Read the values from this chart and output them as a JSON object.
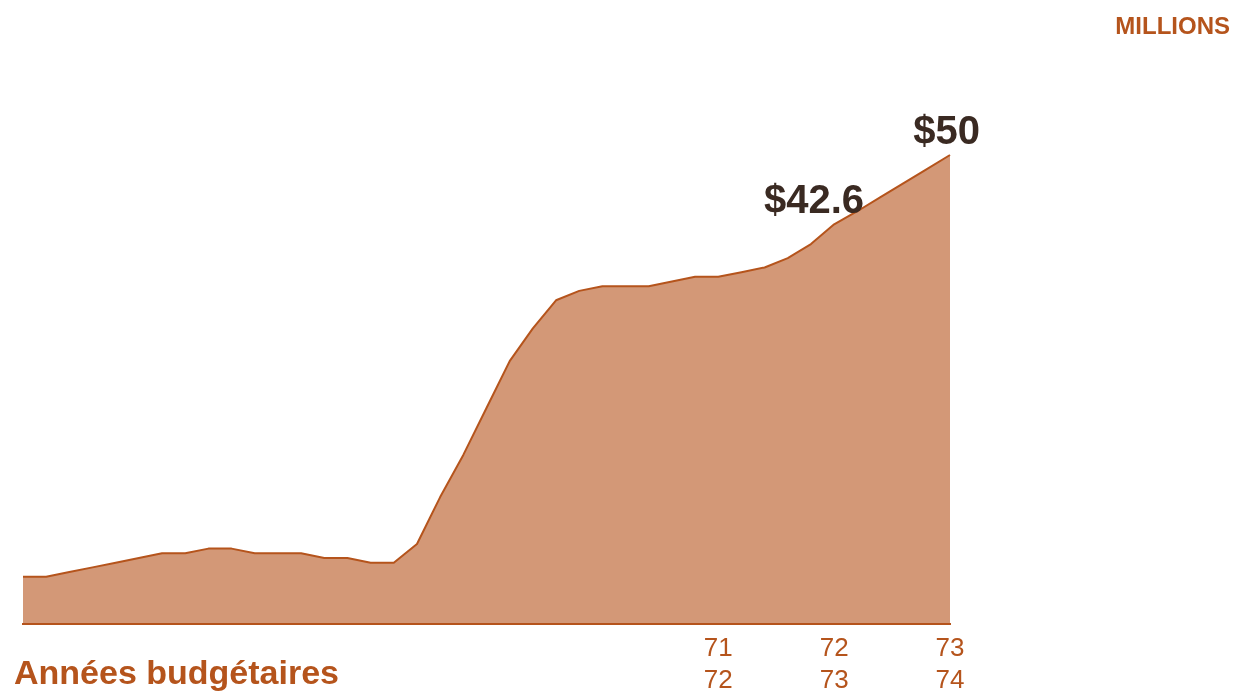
{
  "chart_data": {
    "type": "area",
    "annotations": [
      "MILLIONS"
    ],
    "xlabel": "Années budgétaires",
    "color": "#b5541c",
    "tick_labels": "x",
    "categories": [
      null,
      null,
      null,
      null,
      null,
      null,
      null,
      null,
      null,
      null,
      null,
      null,
      null,
      null,
      null,
      null,
      null,
      null,
      null,
      null,
      null,
      null,
      null,
      null,
      null,
      null,
      null,
      null,
      null,
      null,
      "71\n72",
      null,
      null,
      null,
      null,
      "72\n73",
      null,
      null,
      null,
      null,
      "73\n74"
    ],
    "values": [
      5,
      5,
      5.5,
      6,
      6.5,
      7,
      7.5,
      7.5,
      8,
      8,
      7.5,
      7.5,
      7.5,
      7,
      7,
      6.5,
      6.5,
      8.5,
      13.5,
      18,
      23,
      28,
      31.5,
      34.5,
      35.5,
      36,
      36,
      36,
      36.5,
      37,
      37,
      37.5,
      38,
      39,
      40.5,
      42.6,
      44,
      45.5,
      47,
      48.5,
      50
    ],
    "value_labels": [
      null,
      null,
      null,
      null,
      null,
      null,
      null,
      null,
      null,
      null,
      null,
      null,
      null,
      null,
      null,
      null,
      null,
      null,
      null,
      null,
      null,
      null,
      null,
      null,
      null,
      null,
      null,
      null,
      null,
      null,
      null,
      null,
      null,
      null,
      null,
      "$42.6",
      null,
      null,
      null,
      null,
      "$50"
    ]
  }
}
